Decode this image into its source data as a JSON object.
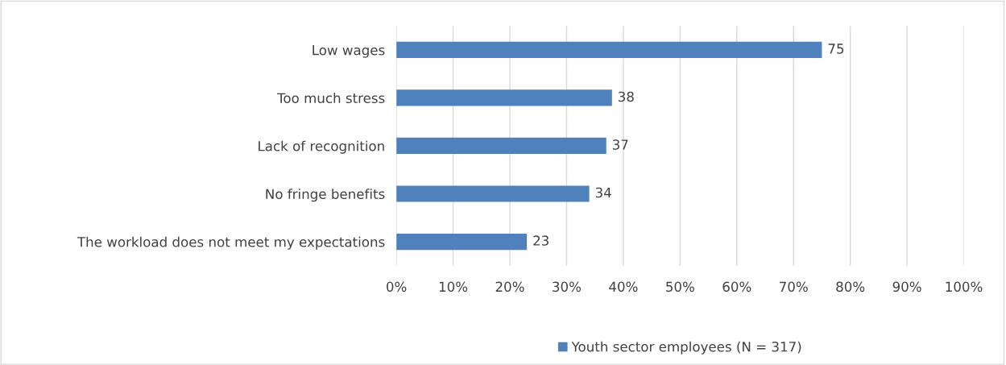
{
  "chart_data": {
    "type": "bar",
    "orientation": "horizontal",
    "categories": [
      "Low wages",
      "Too much stress",
      "Lack of recognition",
      "No fringe benefits",
      "The workload does not meet my expectations"
    ],
    "series": [
      {
        "name": "Youth sector employees (N = 317)",
        "color": "#4f81bd",
        "values": [
          75,
          38,
          37,
          34,
          23
        ]
      }
    ],
    "xlim": [
      0,
      100
    ],
    "xticks": [
      {
        "value": 0,
        "label": "0%"
      },
      {
        "value": 10,
        "label": "10%"
      },
      {
        "value": 20,
        "label": "20%"
      },
      {
        "value": 30,
        "label": "30%"
      },
      {
        "value": 40,
        "label": "40%"
      },
      {
        "value": 50,
        "label": "50%"
      },
      {
        "value": 60,
        "label": "60%"
      },
      {
        "value": 70,
        "label": "70%"
      },
      {
        "value": 80,
        "label": "80%"
      },
      {
        "value": 90,
        "label": "90%"
      },
      {
        "value": 100,
        "label": "100%"
      }
    ],
    "grid": "x",
    "legend": "bottom",
    "data_labels": true
  }
}
